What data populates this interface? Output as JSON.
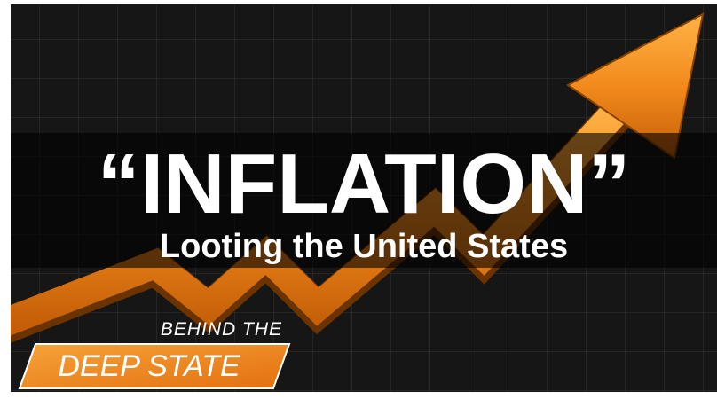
{
  "title": "“INFLATION”",
  "subtitle": "Looting the United States",
  "badge": {
    "line1": "BEHIND THE",
    "line2": "DEEP STATE"
  }
}
